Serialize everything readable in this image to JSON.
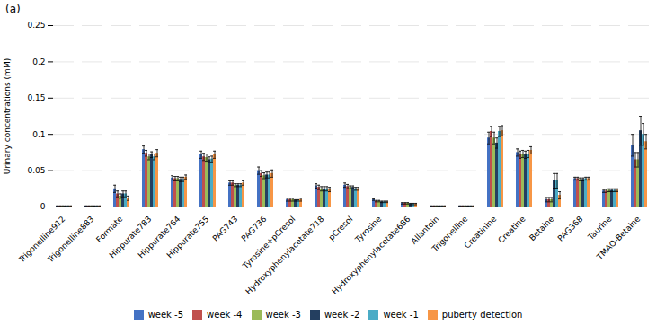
{
  "chart_data": {
    "type": "bar",
    "annotations": [
      "(a)"
    ],
    "ylabel": "Urinary concentrations (mM)",
    "categories": [
      "Trigonelline912",
      "Trigonelline883",
      "Formate",
      "Hippurate783",
      "Hippurate764",
      "Hippurate755",
      "PAG743",
      "PAG736",
      "Tyrosine+pCresol",
      "Hydroxyphenylacetate718",
      "pCresol",
      "Tyrosine",
      "Hydroxyphenylacetate686",
      "Allantoin",
      "Trigonelline",
      "Creatinine",
      "Creatine",
      "Betaine",
      "PAG368",
      "Taurine",
      "TMAO-Betaine"
    ],
    "series": [
      {
        "name": "week -5",
        "color": "#4472C4",
        "values": [
          0.001,
          0.001,
          0.025,
          0.079,
          0.04,
          0.072,
          0.033,
          0.05,
          0.01,
          0.029,
          0.03,
          0.01,
          0.005,
          0.001,
          0.001,
          0.095,
          0.075,
          0.01,
          0.039,
          0.022,
          0.085
        ],
        "errors": [
          0.0005,
          0.0005,
          0.005,
          0.005,
          0.003,
          0.005,
          0.003,
          0.005,
          0.002,
          0.003,
          0.003,
          0.001,
          0.001,
          0.0005,
          0.0005,
          0.008,
          0.005,
          0.003,
          0.002,
          0.002,
          0.015
        ]
      },
      {
        "name": "week -4",
        "color": "#C0504D",
        "values": [
          0.001,
          0.001,
          0.018,
          0.074,
          0.039,
          0.069,
          0.033,
          0.046,
          0.01,
          0.027,
          0.028,
          0.008,
          0.005,
          0.001,
          0.001,
          0.104,
          0.072,
          0.01,
          0.039,
          0.022,
          0.065
        ],
        "errors": [
          0.0005,
          0.0005,
          0.004,
          0.004,
          0.003,
          0.005,
          0.003,
          0.004,
          0.002,
          0.003,
          0.003,
          0.001,
          0.001,
          0.0005,
          0.0005,
          0.007,
          0.005,
          0.003,
          0.002,
          0.002,
          0.01
        ]
      },
      {
        "name": "week -3",
        "color": "#9BBB59",
        "values": [
          0.001,
          0.001,
          0.015,
          0.069,
          0.039,
          0.068,
          0.03,
          0.043,
          0.01,
          0.025,
          0.027,
          0.008,
          0.005,
          0.001,
          0.001,
          0.095,
          0.073,
          0.01,
          0.038,
          0.023,
          0.065
        ],
        "errors": [
          0.0005,
          0.0005,
          0.003,
          0.004,
          0.003,
          0.005,
          0.002,
          0.004,
          0.002,
          0.003,
          0.002,
          0.001,
          0.001,
          0.0005,
          0.0005,
          0.008,
          0.005,
          0.003,
          0.002,
          0.002,
          0.01
        ]
      },
      {
        "name": "week -2",
        "color": "#243F60",
        "values": [
          0.001,
          0.001,
          0.018,
          0.072,
          0.038,
          0.065,
          0.03,
          0.044,
          0.009,
          0.025,
          0.027,
          0.007,
          0.004,
          0.001,
          0.001,
          0.088,
          0.072,
          0.036,
          0.038,
          0.023,
          0.105
        ],
        "errors": [
          0.0005,
          0.0005,
          0.004,
          0.004,
          0.003,
          0.004,
          0.002,
          0.004,
          0.001,
          0.003,
          0.002,
          0.001,
          0.001,
          0.0005,
          0.0005,
          0.007,
          0.005,
          0.01,
          0.002,
          0.002,
          0.02
        ]
      },
      {
        "name": "week -1",
        "color": "#4BACC6",
        "values": [
          0.001,
          0.001,
          0.018,
          0.069,
          0.038,
          0.066,
          0.03,
          0.044,
          0.009,
          0.025,
          0.025,
          0.007,
          0.004,
          0.001,
          0.001,
          0.104,
          0.073,
          0.036,
          0.039,
          0.023,
          0.1
        ],
        "errors": [
          0.0005,
          0.0005,
          0.004,
          0.004,
          0.003,
          0.004,
          0.002,
          0.004,
          0.001,
          0.003,
          0.002,
          0.001,
          0.001,
          0.0005,
          0.0005,
          0.007,
          0.005,
          0.01,
          0.002,
          0.002,
          0.015
        ]
      },
      {
        "name": "puberty detection",
        "color": "#F79646",
        "values": [
          0.001,
          0.001,
          0.012,
          0.074,
          0.041,
          0.072,
          0.033,
          0.046,
          0.01,
          0.024,
          0.025,
          0.007,
          0.004,
          0.001,
          0.001,
          0.105,
          0.078,
          0.016,
          0.039,
          0.023,
          0.09
        ],
        "errors": [
          0.0005,
          0.0005,
          0.003,
          0.005,
          0.003,
          0.005,
          0.003,
          0.005,
          0.002,
          0.003,
          0.002,
          0.001,
          0.001,
          0.0005,
          0.0005,
          0.007,
          0.005,
          0.005,
          0.002,
          0.002,
          0.01
        ]
      }
    ],
    "ylim": [
      0,
      0.25
    ],
    "yticks": [
      0,
      0.05,
      0.1,
      0.15,
      0.2,
      0.25
    ],
    "grid": true
  }
}
